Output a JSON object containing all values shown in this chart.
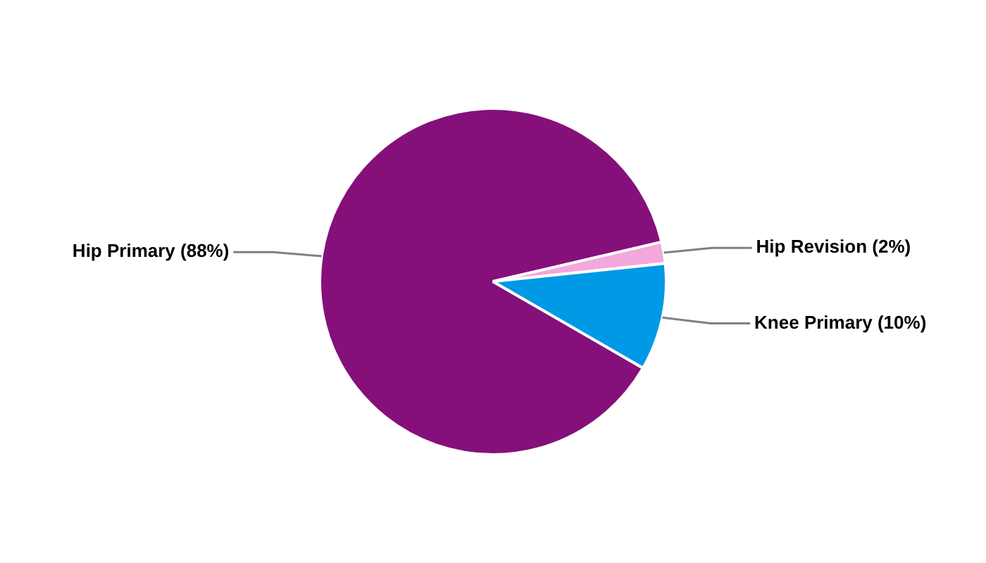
{
  "chart_data": {
    "type": "pie",
    "categories": [
      "Hip Primary",
      "Hip Revision",
      "Knee Primary"
    ],
    "values": [
      88,
      2,
      10
    ],
    "value_labels": [
      "(88%)",
      "(2%)",
      "(10%)"
    ],
    "colors": [
      "#85107a",
      "#f2a8dd",
      "#0099e6"
    ],
    "legend": false
  }
}
